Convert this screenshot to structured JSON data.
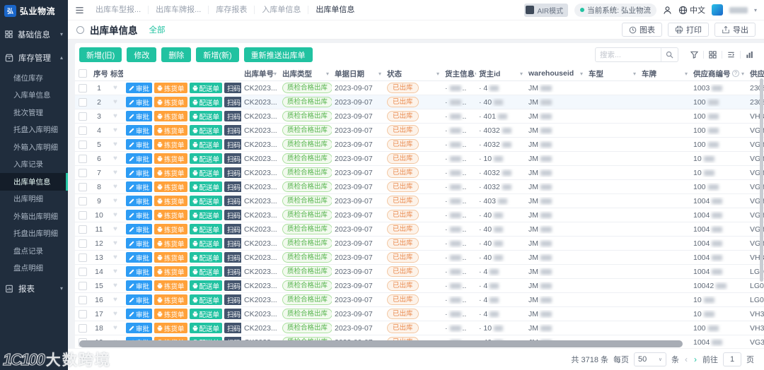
{
  "colors": {
    "accent": "#21c2a1",
    "approve_blue": "#2d9cf4",
    "pick_orange": "#ffa13a",
    "scan_navy": "#43546d",
    "success_green": "#56b44d",
    "warn_orange": "#e98a4e",
    "sidebar_bg": "#202d3d"
  },
  "sidebar": {
    "logo_text": "弘业物流",
    "menu": [
      {
        "label": "基础信息",
        "icon": "grid-icon",
        "caret": "▾",
        "children": []
      },
      {
        "label": "库存管理",
        "icon": "box-icon",
        "caret": "▴",
        "children": [
          "储位库存",
          "入库单信息",
          "批次管理",
          "托盘入库明细",
          "外箱入库明细",
          "入库记录",
          "出库单信息",
          "出库明细",
          "外箱出库明细",
          "托盘出库明细",
          "盘点记录",
          "盘点明细"
        ]
      },
      {
        "label": "报表",
        "icon": "report-icon",
        "caret": "▾",
        "children": []
      }
    ],
    "active_item": "出库单信息"
  },
  "watermark": {
    "logo": "1C100",
    "text": "大数跨境"
  },
  "topbar": {
    "tabs": [
      "出库车型报...",
      "出库车牌报...",
      "库存报表",
      "入库单信息",
      "出库单信息"
    ],
    "active_tab": "出库单信息",
    "air_mode": "AIR模式",
    "current_system": "当前系统: 弘业物流",
    "language": "中文"
  },
  "page_header": {
    "title": "出库单信息",
    "filter_link": "全部",
    "buttons": [
      {
        "label": "图表",
        "icon": "clock-icon"
      },
      {
        "label": "打印",
        "icon": "printer-lg-icon"
      },
      {
        "label": "导出",
        "icon": "export-icon"
      }
    ]
  },
  "toolbar": {
    "buttons": [
      "新增(旧)",
      "修改",
      "删除",
      "新增(新)",
      "重新推送出库单"
    ],
    "search_placeholder": "搜索...",
    "icon_tools": [
      "filter-icon",
      "grid-icon",
      "columns-icon",
      "bar-chart-icon"
    ]
  },
  "table": {
    "columns": [
      {
        "id": "select",
        "label": "",
        "type": "checkbox"
      },
      {
        "id": "num",
        "label": "序号"
      },
      {
        "id": "tag",
        "label": "标签"
      },
      {
        "id": "actions",
        "label": ""
      },
      {
        "id": "order_no",
        "label": "出库单号",
        "sortable": true
      },
      {
        "id": "type",
        "label": "出库类型",
        "sortable": true
      },
      {
        "id": "date",
        "label": "单据日期",
        "sortable": true
      },
      {
        "id": "status",
        "label": "状态",
        "sortable": true
      },
      {
        "id": "owner_info",
        "label": "货主信息",
        "sortable": true
      },
      {
        "id": "owner_id",
        "label": "货主id",
        "sortable": true
      },
      {
        "id": "warehouse_id",
        "label": "warehouseid",
        "sortable": true
      },
      {
        "id": "vehicle_model",
        "label": "车型",
        "sortable": true
      },
      {
        "id": "vehicle_plate",
        "label": "车牌",
        "sortable": true
      },
      {
        "id": "supplier_no",
        "label": "供应商编号",
        "sortable": true,
        "help": true
      },
      {
        "id": "supplier",
        "label": "供应商"
      }
    ],
    "row_actions": [
      {
        "label": "审批",
        "icon": "pencil-icon",
        "color": "#2d9cf4"
      },
      {
        "label": "拣货单",
        "icon": "printer-icon",
        "color": "#ffa13a"
      },
      {
        "label": "配送单",
        "icon": "printer-icon",
        "color": "#21c2a1"
      },
      {
        "label": "扫码出库",
        "icon": "",
        "color": "#43546d"
      }
    ],
    "rows": [
      {
        "num": 1,
        "order_no": "CK2023...",
        "type": "质检合格出库",
        "date": "2023-09-07",
        "status": "已出库",
        "owner_id": "· 4",
        "warehouse_id": "JM",
        "supplier_no": "1003",
        "supplier": "2308",
        "edited": false,
        "highlighted": false
      },
      {
        "num": 2,
        "order_no": "CK2023...",
        "type": "质检合格出库",
        "date": "2023-09-07",
        "status": "已出库",
        "owner_id": "· 40",
        "warehouse_id": "JM",
        "supplier_no": "100",
        "supplier": "2308",
        "edited": true,
        "highlighted": true
      },
      {
        "num": 3,
        "order_no": "CK2023...",
        "type": "质检合格出库",
        "date": "2023-09-07",
        "status": "已出库",
        "owner_id": "· 401",
        "warehouse_id": "JM",
        "supplier_no": "100",
        "supplier": "VH3",
        "edited": false,
        "highlighted": false
      },
      {
        "num": 4,
        "order_no": "CK2023...",
        "type": "质检合格出库",
        "date": "2023-09-07",
        "status": "已出库",
        "owner_id": "· 4032",
        "warehouse_id": "JM",
        "supplier_no": "100",
        "supplier": "VG3",
        "edited": false,
        "highlighted": false
      },
      {
        "num": 5,
        "order_no": "CK2023...",
        "type": "质检合格出库",
        "date": "2023-09-07",
        "status": "已出库",
        "owner_id": "· 4032",
        "warehouse_id": "JM",
        "supplier_no": "100",
        "supplier": "VG3",
        "edited": false,
        "highlighted": false
      },
      {
        "num": 6,
        "order_no": "CK2023...",
        "type": "质检合格出库",
        "date": "2023-09-07",
        "status": "已出库",
        "owner_id": "· 10",
        "warehouse_id": "JM",
        "supplier_no": "10",
        "supplier": "VG3",
        "edited": false,
        "highlighted": false
      },
      {
        "num": 7,
        "order_no": "CK2023...",
        "type": "质检合格出库",
        "date": "2023-09-07",
        "status": "已出库",
        "owner_id": "· 4032",
        "warehouse_id": "JM",
        "supplier_no": "10",
        "supplier": "VG3",
        "edited": false,
        "highlighted": false
      },
      {
        "num": 8,
        "order_no": "CK2023...",
        "type": "质检合格出库",
        "date": "2023-09-07",
        "status": "已出库",
        "owner_id": "· 4032",
        "warehouse_id": "JM",
        "supplier_no": "100",
        "supplier": "VG3",
        "edited": false,
        "highlighted": false
      },
      {
        "num": 9,
        "order_no": "CK2023...",
        "type": "质检合格出库",
        "date": "2023-09-07",
        "status": "已出库",
        "owner_id": "· 403",
        "warehouse_id": "JM",
        "supplier_no": "1004",
        "supplier": "VG3",
        "edited": false,
        "highlighted": false
      },
      {
        "num": 10,
        "order_no": "CK2023...",
        "type": "质检合格出库",
        "date": "2023-09-07",
        "status": "已出库",
        "owner_id": "· 40",
        "warehouse_id": "JM",
        "supplier_no": "1004",
        "supplier": "VG3",
        "edited": false,
        "highlighted": false
      },
      {
        "num": 11,
        "order_no": "CK2023...",
        "type": "质检合格出库",
        "date": "2023-09-07",
        "status": "已出库",
        "owner_id": "· 40",
        "warehouse_id": "JM",
        "supplier_no": "1004",
        "supplier": "VG3",
        "edited": false,
        "highlighted": false
      },
      {
        "num": 12,
        "order_no": "CK2023...",
        "type": "质检合格出库",
        "date": "2023-09-07",
        "status": "已出库",
        "owner_id": "· 40",
        "warehouse_id": "JM",
        "supplier_no": "1004",
        "supplier": "VG3",
        "edited": false,
        "highlighted": false
      },
      {
        "num": 13,
        "order_no": "CK2023...",
        "type": "质检合格出库",
        "date": "2023-09-07",
        "status": "已出库",
        "owner_id": "· 40",
        "warehouse_id": "JM",
        "supplier_no": "1004",
        "supplier": "VH3",
        "edited": false,
        "highlighted": false
      },
      {
        "num": 14,
        "order_no": "CK2023...",
        "type": "质检合格出库",
        "date": "2023-09-07",
        "status": "已出库",
        "owner_id": "· 4",
        "warehouse_id": "JM",
        "supplier_no": "1004",
        "supplier": "LG0",
        "edited": false,
        "highlighted": false
      },
      {
        "num": 15,
        "order_no": "CK2023...",
        "type": "质检合格出库",
        "date": "2023-09-07",
        "status": "已出库",
        "owner_id": "· 4",
        "warehouse_id": "JM",
        "supplier_no": "10042",
        "supplier": "LG0",
        "edited": false,
        "highlighted": false
      },
      {
        "num": 16,
        "order_no": "CK2023...",
        "type": "质检合格出库",
        "date": "2023-09-07",
        "status": "已出库",
        "owner_id": "· 4",
        "warehouse_id": "JM",
        "supplier_no": "10",
        "supplier": "LG0",
        "edited": false,
        "highlighted": false
      },
      {
        "num": 17,
        "order_no": "CK2023...",
        "type": "质检合格出库",
        "date": "2023-09-07",
        "status": "已出库",
        "owner_id": "· 4",
        "warehouse_id": "JM",
        "supplier_no": "10",
        "supplier": "VH3",
        "edited": false,
        "highlighted": false
      },
      {
        "num": 18,
        "order_no": "CK2023...",
        "type": "质检合格出库",
        "date": "2023-09-07",
        "status": "已出库",
        "owner_id": "· 10",
        "warehouse_id": "JM",
        "supplier_no": "100",
        "supplier": "VH3",
        "edited": false,
        "highlighted": false
      },
      {
        "num": 19,
        "order_no": "CK2023...",
        "type": "质检合格出库",
        "date": "2023-09-07",
        "status": "已出库",
        "owner_id": "· 40",
        "warehouse_id": "JM",
        "supplier_no": "1004",
        "supplier": "VG3",
        "edited": false,
        "highlighted": false
      }
    ]
  },
  "pagination": {
    "total": "共 3718 条",
    "per_page_label": "每页",
    "per_page_value": "50",
    "per_page_unit": "条",
    "prev": "‹",
    "next": "›",
    "goto_label": "前往",
    "page_value": "1",
    "page_unit": "页"
  }
}
